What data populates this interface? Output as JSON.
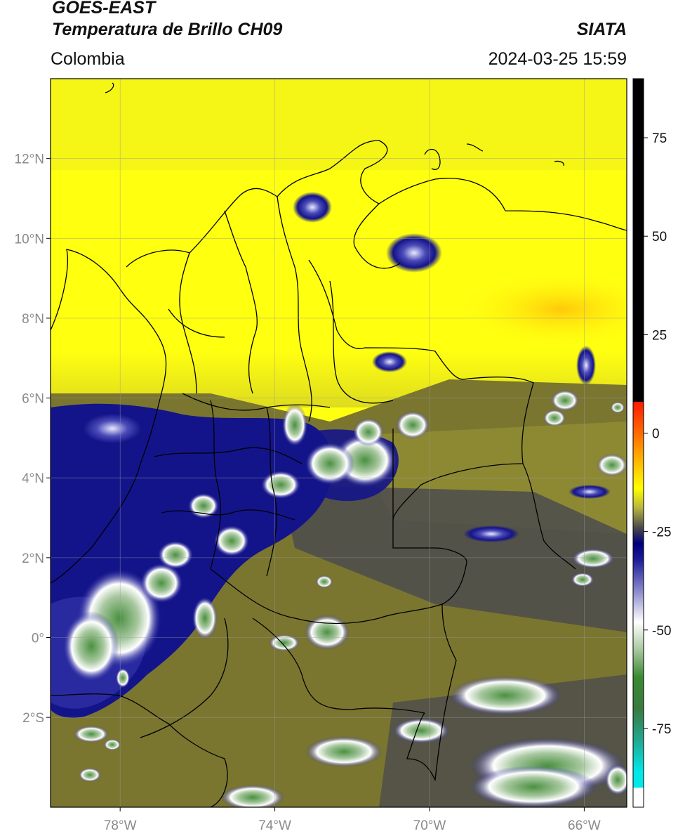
{
  "header": {
    "satellite": "GOES-EAST",
    "product": "Temperatura de Brillo CH09",
    "brand": "SIATA",
    "region": "Colombia",
    "datetime": "2024-03-25 15:59"
  },
  "axes": {
    "lat_labels": [
      {
        "value": 12,
        "text": "12°N"
      },
      {
        "value": 10,
        "text": "10°N"
      },
      {
        "value": 8,
        "text": "8°N"
      },
      {
        "value": 6,
        "text": "6°N"
      },
      {
        "value": 4,
        "text": "4°N"
      },
      {
        "value": 2,
        "text": "2°N"
      },
      {
        "value": 0,
        "text": "0°"
      },
      {
        "value": -2,
        "text": "2°S"
      }
    ],
    "lon_labels": [
      {
        "value": -78,
        "text": "78°W"
      },
      {
        "value": -74,
        "text": "74°W"
      },
      {
        "value": -70,
        "text": "70°W"
      },
      {
        "value": -66,
        "text": "66°W"
      }
    ],
    "lon_range": [
      -79.8,
      -64.9
    ],
    "lat_range": [
      -4.25,
      14.0
    ],
    "grid": true
  },
  "colorbar": {
    "range": [
      -95,
      90
    ],
    "ticks": [
      {
        "value": 75,
        "text": "75"
      },
      {
        "value": 50,
        "text": "50"
      },
      {
        "value": 25,
        "text": "25"
      },
      {
        "value": 0,
        "text": "0"
      },
      {
        "value": -25,
        "text": "-25"
      },
      {
        "value": -50,
        "text": "-50"
      },
      {
        "value": -75,
        "text": "-75"
      }
    ],
    "stops": [
      {
        "value": 90,
        "color": "#000000"
      },
      {
        "value": 8,
        "color": "#000000"
      },
      {
        "value": 7.9,
        "color": "#ff1a00"
      },
      {
        "value": 0,
        "color": "#ff6a00"
      },
      {
        "value": -8,
        "color": "#ffc000"
      },
      {
        "value": -14,
        "color": "#ffff00"
      },
      {
        "value": -19,
        "color": "#b8b440"
      },
      {
        "value": -24,
        "color": "#4a4a4a"
      },
      {
        "value": -28,
        "color": "#00007a"
      },
      {
        "value": -32,
        "color": "#1a1a9a"
      },
      {
        "value": -40,
        "color": "#8888cc"
      },
      {
        "value": -48,
        "color": "#ffffff"
      },
      {
        "value": -55,
        "color": "#a8c8a0"
      },
      {
        "value": -62,
        "color": "#3a8a30"
      },
      {
        "value": -70,
        "color": "#3a7a40"
      },
      {
        "value": -78,
        "color": "#20a890"
      },
      {
        "value": -86,
        "color": "#00e8e8"
      },
      {
        "value": -90,
        "color": "#00e8e8"
      },
      {
        "value": -90.1,
        "color": "#ffffff"
      },
      {
        "value": -95,
        "color": "#ffffff"
      }
    ]
  },
  "colors": {
    "yellow": "#ffff10",
    "yellow_dim": "#e9e918",
    "orange_tint": "#ffd40a",
    "olive": "#7a7630",
    "olive_light": "#9a9636",
    "gray_dark": "#4c4c4e",
    "navy": "#14148a",
    "blue_mid": "#3636aa",
    "white_cloud": "#f4f4ff",
    "green_cloud": "#4a9040",
    "border": "#000000",
    "grid": "#9a9a9a"
  }
}
